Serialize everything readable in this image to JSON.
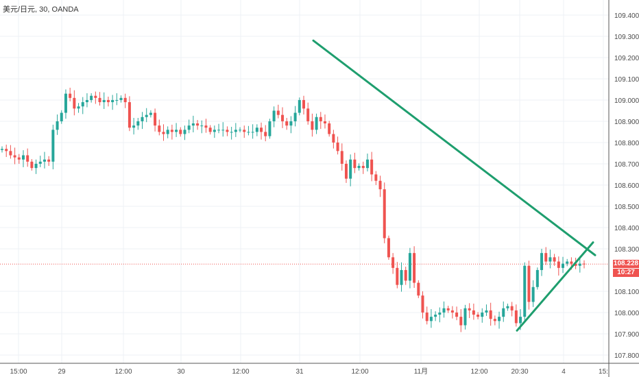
{
  "title": "美元/日元, 30, OANDA",
  "current_price_label": "108.228",
  "countdown_label": "10:27",
  "colors": {
    "up": "#26a69a",
    "down": "#ef5350",
    "trendline": "#1e9e6e",
    "grid": "#eef1f6",
    "axis_text": "#4a4a4a",
    "price_line": "#ef5350"
  },
  "chart_data": {
    "type": "candlestick",
    "title": "美元/日元, 30, OANDA",
    "xlabel": "",
    "ylabel": "",
    "ylim": [
      107.745,
      109.445
    ],
    "y_ticks": [
      "109.400",
      "109.300",
      "109.200",
      "109.100",
      "109.000",
      "108.900",
      "108.800",
      "108.700",
      "108.600",
      "108.500",
      "108.400",
      "108.300",
      "108.100",
      "108.000",
      "107.900",
      "107.800"
    ],
    "x_ticks": [
      "15:00",
      "29",
      "12:00",
      "30",
      "12:00",
      "31",
      "12:00",
      "11月",
      "12:00",
      "20:30",
      "4",
      "15:"
    ],
    "grid": true,
    "last_price": 108.228,
    "series_close": [
      108.77,
      108.76,
      108.74,
      108.73,
      108.72,
      108.74,
      108.71,
      108.68,
      108.7,
      108.71,
      108.72,
      108.71,
      108.86,
      108.9,
      108.94,
      109.03,
      109.01,
      108.96,
      108.97,
      108.99,
      109.0,
      109.02,
      109.01,
      108.99,
      109.0,
      108.99,
      109.0,
      109.0,
      109.01,
      108.99,
      108.87,
      108.88,
      108.9,
      108.92,
      108.93,
      108.94,
      108.88,
      108.85,
      108.84,
      108.86,
      108.85,
      108.86,
      108.84,
      108.86,
      108.88,
      108.89,
      108.88,
      108.88,
      108.87,
      108.85,
      108.86,
      108.86,
      108.86,
      108.85,
      108.85,
      108.86,
      108.86,
      108.85,
      108.85,
      108.85,
      108.87,
      108.85,
      108.83,
      108.9,
      108.95,
      108.93,
      108.9,
      108.88,
      108.9,
      108.94,
      109.0,
      108.96,
      108.9,
      108.86,
      108.92,
      108.9,
      108.89,
      108.84,
      108.8,
      108.76,
      108.7,
      108.63,
      108.72,
      108.68,
      108.69,
      108.68,
      108.72,
      108.65,
      108.62,
      108.58,
      108.35,
      108.26,
      108.21,
      108.13,
      108.2,
      108.15,
      108.28,
      108.14,
      108.08,
      108.0,
      107.96,
      107.98,
      107.99,
      108.0,
      108.02,
      108.01,
      108.0,
      107.98,
      107.94,
      108.02,
      108.01,
      107.99,
      107.98,
      108.0,
      108.01,
      107.97,
      107.96,
      107.98,
      108.02,
      108.03,
      108.01,
      107.95,
      107.98,
      108.22,
      108.05,
      108.12,
      108.2,
      108.28,
      108.24,
      108.26,
      108.24,
      108.21,
      108.23,
      108.24,
      108.23,
      108.22,
      108.23,
      108.228
    ]
  }
}
